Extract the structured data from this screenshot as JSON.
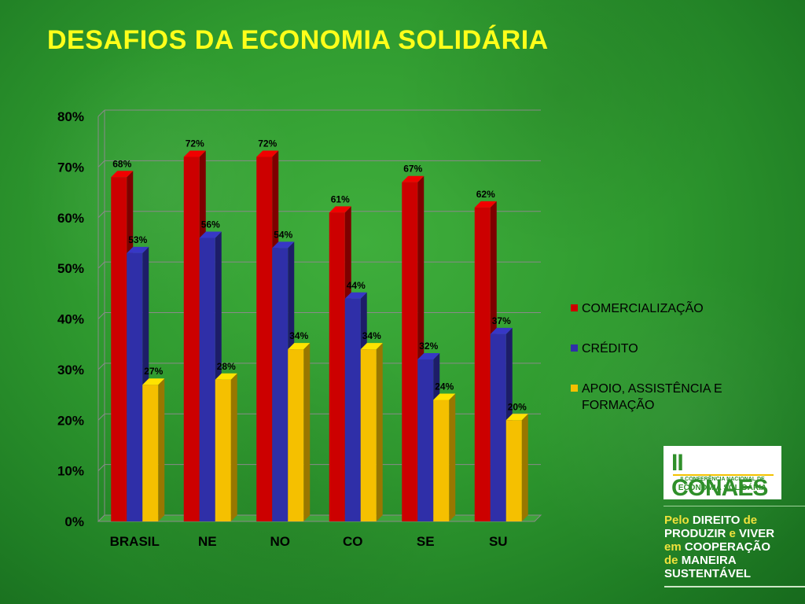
{
  "title": "DESAFIOS DA ECONOMIA SOLIDÁRIA",
  "chart_data": {
    "type": "bar",
    "title": "",
    "xlabel": "",
    "ylabel": "",
    "ylim": [
      0,
      80
    ],
    "yticks": [
      "0%",
      "10%",
      "20%",
      "30%",
      "40%",
      "50%",
      "60%",
      "70%",
      "80%"
    ],
    "categories": [
      "BRASIL",
      "NE",
      "NO",
      "CO",
      "SE",
      "SU"
    ],
    "series": [
      {
        "name": "COMERCIALIZAÇÃO",
        "color": "#cc0000",
        "values": [
          68,
          72,
          72,
          61,
          67,
          62
        ],
        "labels": [
          "68%",
          "72%",
          "72%",
          "61%",
          "67%",
          "62%"
        ]
      },
      {
        "name": "CRÉDITO",
        "color": "#2f2fa8",
        "values": [
          53,
          56,
          54,
          44,
          32,
          37
        ],
        "labels": [
          "53%",
          "56%",
          "54%",
          "44%",
          "32%",
          "37%"
        ]
      },
      {
        "name": "APOIO, ASSISTÊNCIA E FORMAÇÃO",
        "color": "#f5c000",
        "values": [
          27,
          28,
          34,
          34,
          24,
          20
        ],
        "labels": [
          "27%",
          "28%",
          "34%",
          "34%",
          "24%",
          "20%"
        ]
      }
    ],
    "grid": true,
    "legend_position": "right"
  },
  "legend": {
    "items": [
      {
        "label": "COMERCIALIZAÇÃO",
        "color": "#cc0000"
      },
      {
        "label": "CRÉDITO",
        "color": "#2f2fa8"
      },
      {
        "label": "APOIO, ASSISTÊNCIA E FORMAÇÃO",
        "color": "#f5c000"
      }
    ]
  },
  "logo": {
    "main": "II CONAES",
    "sub1": "II CONFERÊNCIA NACIONAL DE",
    "sub2": "ECONOMIA SOLIDÁRIA"
  },
  "slogan": {
    "w1": "Pelo",
    "w2": "DIREITO",
    "w3": "de",
    "w4": "PRODUZIR",
    "w5": "e",
    "w6": "VIVER",
    "w7": "em",
    "w8": "COOPERAÇÃO",
    "w9": "de",
    "w10": "MANEIRA",
    "w11": "SUSTENTÁVEL"
  }
}
